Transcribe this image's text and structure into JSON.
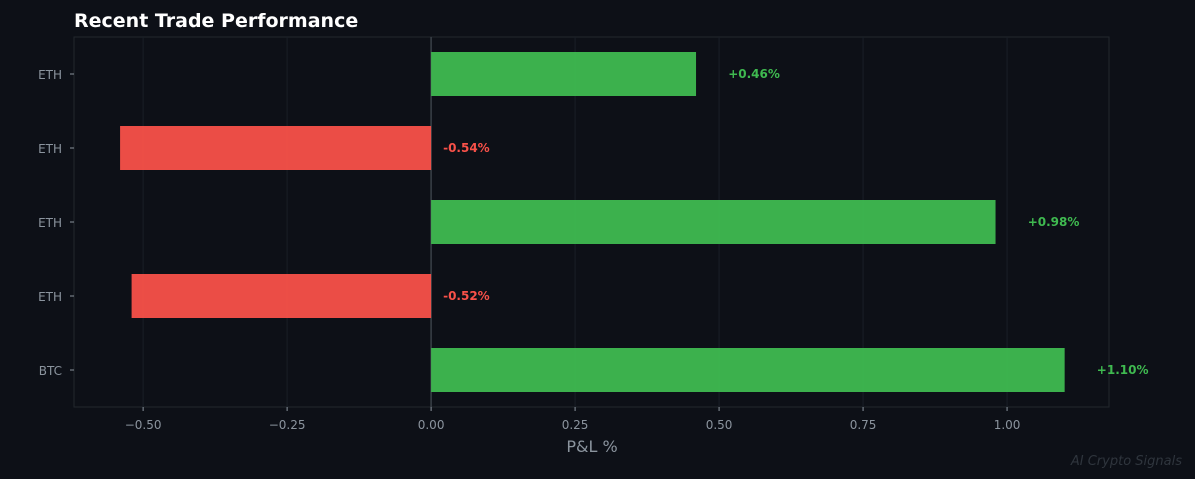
{
  "chart_data": {
    "type": "bar",
    "orientation": "horizontal",
    "title": "Recent Trade Performance",
    "xlabel": "P&L %",
    "ylabel": "",
    "categories": [
      "ETH",
      "ETH",
      "ETH",
      "ETH",
      "BTC"
    ],
    "values": [
      0.46,
      -0.54,
      0.98,
      -0.52,
      1.1
    ],
    "data_labels": [
      "+0.46%",
      "-0.54%",
      "+0.98%",
      "-0.52%",
      "+1.10%"
    ],
    "xlim": [
      -0.62,
      1.177
    ],
    "xticks": [
      -0.5,
      -0.25,
      0,
      0.25,
      0.5,
      0.75,
      1.0
    ],
    "xtick_labels": [
      "−0.50",
      "−0.25",
      "0.00",
      "0.25",
      "0.50",
      "0.75",
      "1.00"
    ],
    "grid": true,
    "colors": {
      "positive": "#3fba50",
      "negative": "#f85149",
      "background": "#0d1017"
    }
  },
  "watermark": "AI Crypto Signals"
}
